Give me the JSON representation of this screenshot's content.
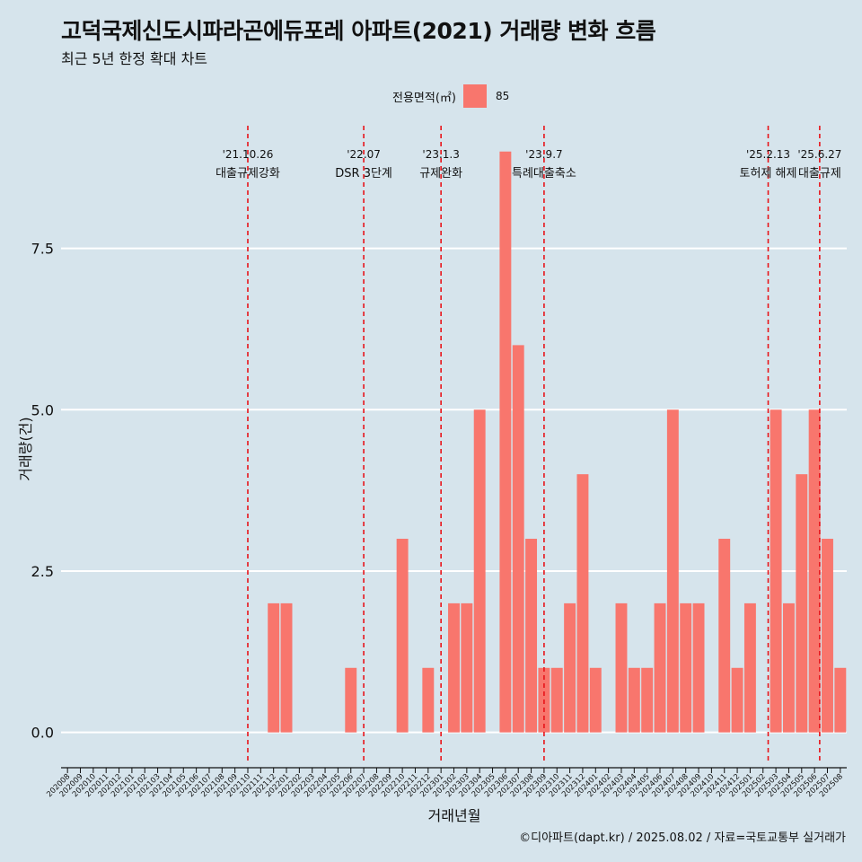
{
  "header": {
    "title": "고덕국제신도시파라곤에듀포레 아파트(2021) 거래량 변화 흐름",
    "subtitle": "최근 5년 한정 확대 차트"
  },
  "legend": {
    "title": "전용면적(㎡)",
    "label": "85"
  },
  "caption": "©디아파트(dapt.kr) / 2025.08.02 / 자료=국토교통부 실거래가",
  "colors": {
    "background": "#d6e4ec",
    "bar": "#f8766d",
    "grid": "#ffffff",
    "event_line": "#e8141a"
  },
  "chart_data": {
    "type": "bar",
    "xlabel": "거래년월",
    "ylabel": "거래량(건)",
    "ylim": [
      -0.45,
      9.4
    ],
    "y_ticks": [
      0,
      2.5,
      5,
      7.5
    ],
    "y_tick_labels": [
      "0.0",
      "2.5",
      "5.0",
      "7.5"
    ],
    "grid": true,
    "legend_position": "top",
    "categories": [
      "202008",
      "202009",
      "202010",
      "202011",
      "202012",
      "202101",
      "202102",
      "202103",
      "202104",
      "202105",
      "202106",
      "202107",
      "202108",
      "202109",
      "202110",
      "202111",
      "202112",
      "202201",
      "202202",
      "202203",
      "202204",
      "202205",
      "202206",
      "202207",
      "202208",
      "202209",
      "202210",
      "202211",
      "202212",
      "202301",
      "202302",
      "202303",
      "202304",
      "202305",
      "202306",
      "202307",
      "202308",
      "202309",
      "202310",
      "202311",
      "202312",
      "202401",
      "202402",
      "202403",
      "202404",
      "202405",
      "202406",
      "202407",
      "202408",
      "202409",
      "202410",
      "202411",
      "202412",
      "202501",
      "202502",
      "202503",
      "202504",
      "202505",
      "202506",
      "202507",
      "202508"
    ],
    "series": [
      {
        "name": "85",
        "values": [
          0,
          0,
          0,
          0,
          0,
          0,
          0,
          0,
          0,
          0,
          0,
          0,
          0,
          0,
          0,
          0,
          2,
          2,
          0,
          0,
          0,
          0,
          1,
          0,
          0,
          0,
          3,
          0,
          1,
          0,
          2,
          2,
          5,
          0,
          9,
          6,
          3,
          1,
          1,
          2,
          4,
          1,
          0,
          2,
          1,
          1,
          2,
          5,
          2,
          2,
          0,
          3,
          1,
          2,
          0,
          5,
          2,
          4,
          5,
          3,
          1
        ]
      }
    ],
    "events": [
      {
        "x": 14.0,
        "date": "'21.10.26",
        "label": "대출규제강화"
      },
      {
        "x": 23.0,
        "date": "'22.07",
        "label": "DSR 3단계"
      },
      {
        "x": 29.0,
        "date": "'23.1.3",
        "label": "규제완화"
      },
      {
        "x": 37.0,
        "date": "'23.9.7",
        "label": "특례대출축소"
      },
      {
        "x": 54.4,
        "date": "'25.2.13",
        "label": "토허제 해제"
      },
      {
        "x": 58.4,
        "date": "'25.6.27",
        "label": "대출규제"
      }
    ]
  }
}
